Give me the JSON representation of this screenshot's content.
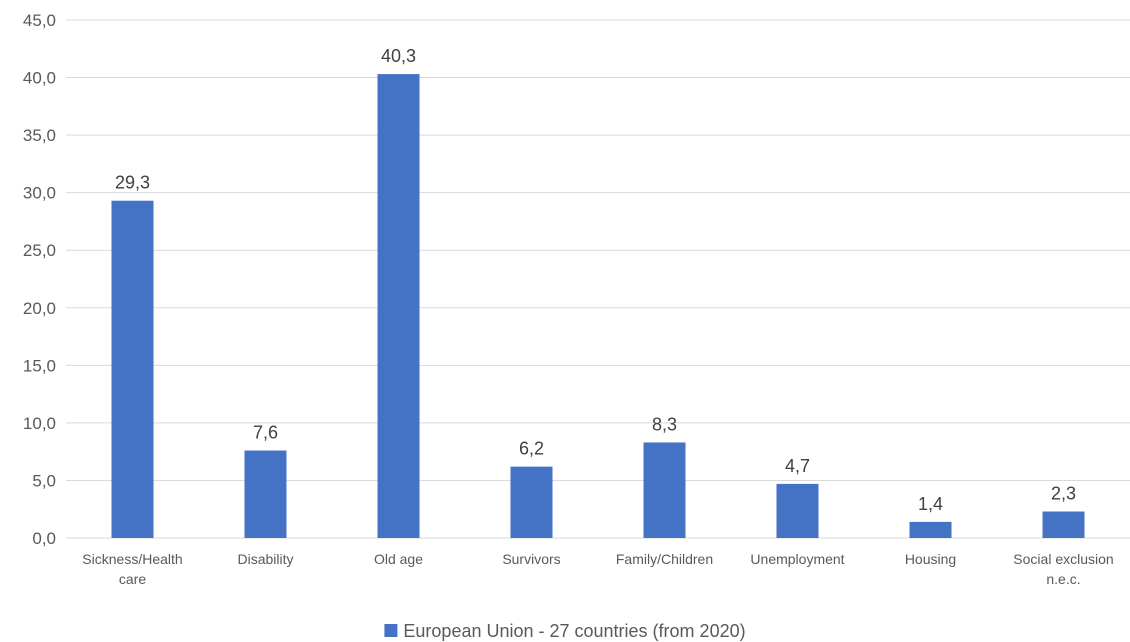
{
  "chart_data": {
    "type": "bar",
    "categories": [
      [
        "Sickness/Health",
        "care"
      ],
      [
        "Disability"
      ],
      [
        "Old age"
      ],
      [
        "Survivors"
      ],
      [
        "Family/Children"
      ],
      [
        "Unemployment"
      ],
      [
        "Housing"
      ],
      [
        "Social exclusion",
        "n.e.c."
      ]
    ],
    "series": [
      {
        "name": "European Union - 27 countries (from 2020)",
        "values": [
          29.3,
          7.6,
          40.3,
          6.2,
          8.3,
          4.7,
          1.4,
          2.3
        ],
        "data_labels": [
          "29,3",
          "7,6",
          "40,3",
          "6,2",
          "8,3",
          "4,7",
          "1,4",
          "2,3"
        ],
        "color": "#4472C4"
      }
    ],
    "ylim": [
      0,
      45
    ],
    "yticks": [
      0,
      5,
      10,
      15,
      20,
      25,
      30,
      35,
      40,
      45
    ],
    "ytick_labels": [
      "0,0",
      "5,0",
      "10,0",
      "15,0",
      "20,0",
      "25,0",
      "30,0",
      "35,0",
      "40,0",
      "45,0"
    ],
    "grid": true,
    "gridline_color": "#D9D9D9",
    "legend_position": "bottom",
    "title": "",
    "xlabel": "",
    "ylabel": ""
  }
}
